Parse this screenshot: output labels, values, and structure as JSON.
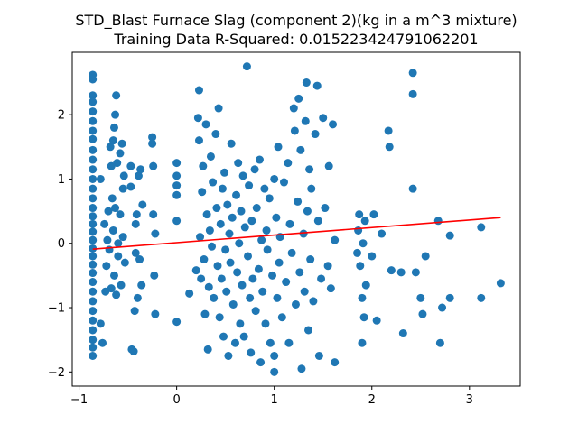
{
  "chart_data": {
    "type": "scatter",
    "title": "STD_Blast Furnace Slag (component 2)(kg in a m^3 mixture)",
    "subtitle": "Training Data R-Squared: 0.015223424791062201",
    "xlabel": "",
    "ylabel": "",
    "xlim": [
      -1.07,
      3.52
    ],
    "ylim": [
      -2.22,
      2.97
    ],
    "xticks": [
      -1,
      0,
      1,
      2,
      3
    ],
    "yticks": [
      -2,
      -1,
      0,
      1,
      2
    ],
    "grid": false,
    "colors": {
      "points": "#1f77b4",
      "fit_line": "#ff0000"
    },
    "fit_line": {
      "x": [
        -0.86,
        3.32
      ],
      "y": [
        -0.09,
        0.4
      ]
    },
    "series": [
      {
        "points": [
          [
            -0.86,
            2.62
          ],
          [
            -0.86,
            2.55
          ],
          [
            -0.86,
            2.3
          ],
          [
            -0.86,
            2.2
          ],
          [
            -0.86,
            2.05
          ],
          [
            -0.86,
            1.9
          ],
          [
            -0.86,
            1.75
          ],
          [
            -0.86,
            1.62
          ],
          [
            -0.86,
            1.45
          ],
          [
            -0.86,
            1.3
          ],
          [
            -0.86,
            1.15
          ],
          [
            -0.86,
            1.0
          ],
          [
            -0.86,
            0.85
          ],
          [
            -0.86,
            0.7
          ],
          [
            -0.86,
            0.55
          ],
          [
            -0.86,
            0.42
          ],
          [
            -0.86,
            0.3
          ],
          [
            -0.86,
            0.18
          ],
          [
            -0.86,
            0.05
          ],
          [
            -0.86,
            -0.08
          ],
          [
            -0.86,
            -0.2
          ],
          [
            -0.86,
            -0.33
          ],
          [
            -0.86,
            -0.46
          ],
          [
            -0.86,
            -0.6
          ],
          [
            -0.86,
            -0.75
          ],
          [
            -0.86,
            -0.9
          ],
          [
            -0.86,
            -1.05
          ],
          [
            -0.86,
            -1.2
          ],
          [
            -0.86,
            -1.35
          ],
          [
            -0.86,
            -1.5
          ],
          [
            -0.86,
            -1.62
          ],
          [
            -0.86,
            -1.75
          ],
          [
            -0.78,
            1.0
          ],
          [
            -0.78,
            -1.25
          ],
          [
            -0.76,
            -1.55
          ],
          [
            -0.74,
            0.3
          ],
          [
            -0.73,
            -0.75
          ],
          [
            -0.72,
            -0.35
          ],
          [
            -0.71,
            0.05
          ],
          [
            -0.7,
            0.5
          ],
          [
            -0.69,
            -0.1
          ],
          [
            -0.68,
            1.5
          ],
          [
            -0.67,
            1.2
          ],
          [
            -0.67,
            -0.7
          ],
          [
            -0.66,
            0.7
          ],
          [
            -0.65,
            1.6
          ],
          [
            -0.65,
            0.2
          ],
          [
            -0.64,
            1.8
          ],
          [
            -0.64,
            -0.5
          ],
          [
            -0.63,
            2.0
          ],
          [
            -0.63,
            0.55
          ],
          [
            -0.62,
            2.3
          ],
          [
            -0.62,
            -0.8
          ],
          [
            -0.61,
            1.25
          ],
          [
            -0.6,
            0.0
          ],
          [
            -0.6,
            -0.2
          ],
          [
            -0.58,
            1.4
          ],
          [
            -0.58,
            0.45
          ],
          [
            -0.57,
            -0.65
          ],
          [
            -0.56,
            1.55
          ],
          [
            -0.55,
            0.85
          ],
          [
            -0.55,
            0.1
          ],
          [
            -0.54,
            1.05
          ],
          [
            -0.53,
            -0.3
          ],
          [
            -0.47,
            1.2
          ],
          [
            -0.47,
            0.88
          ],
          [
            -0.46,
            -1.65
          ],
          [
            -0.44,
            -1.68
          ],
          [
            -0.43,
            -1.05
          ],
          [
            -0.42,
            -0.15
          ],
          [
            -0.42,
            0.3
          ],
          [
            -0.41,
            0.45
          ],
          [
            -0.4,
            -0.85
          ],
          [
            -0.39,
            1.05
          ],
          [
            -0.38,
            -0.25
          ],
          [
            -0.37,
            1.15
          ],
          [
            -0.36,
            -0.65
          ],
          [
            -0.35,
            0.6
          ],
          [
            -0.25,
            1.65
          ],
          [
            -0.25,
            1.55
          ],
          [
            -0.24,
            1.2
          ],
          [
            -0.24,
            0.45
          ],
          [
            -0.23,
            -0.5
          ],
          [
            -0.22,
            -1.1
          ],
          [
            -0.22,
            0.15
          ],
          [
            0.0,
            1.25
          ],
          [
            0.0,
            1.05
          ],
          [
            0.0,
            0.9
          ],
          [
            0.0,
            0.75
          ],
          [
            0.0,
            0.35
          ],
          [
            0.0,
            -1.22
          ],
          [
            0.13,
            -0.78
          ],
          [
            0.2,
            -0.42
          ],
          [
            0.22,
            1.95
          ],
          [
            0.23,
            2.38
          ],
          [
            0.23,
            1.6
          ],
          [
            0.24,
            0.1
          ],
          [
            0.25,
            -0.55
          ],
          [
            0.26,
            0.8
          ],
          [
            0.27,
            1.2
          ],
          [
            0.28,
            -0.25
          ],
          [
            0.29,
            -1.1
          ],
          [
            0.3,
            1.85
          ],
          [
            0.31,
            0.45
          ],
          [
            0.32,
            -1.65
          ],
          [
            0.33,
            -0.68
          ],
          [
            0.34,
            0.2
          ],
          [
            0.35,
            1.35
          ],
          [
            0.36,
            -0.05
          ],
          [
            0.37,
            0.95
          ],
          [
            0.38,
            -0.85
          ],
          [
            0.4,
            1.7
          ],
          [
            0.41,
            0.55
          ],
          [
            0.42,
            -0.35
          ],
          [
            0.43,
            2.1
          ],
          [
            0.44,
            -1.15
          ],
          [
            0.45,
            0.3
          ],
          [
            0.46,
            -0.55
          ],
          [
            0.47,
            0.85
          ],
          [
            0.48,
            -1.45
          ],
          [
            0.49,
            1.1
          ],
          [
            0.5,
            -0.1
          ],
          [
            0.51,
            -0.75
          ],
          [
            0.52,
            0.6
          ],
          [
            0.53,
            -1.75
          ],
          [
            0.54,
            0.15
          ],
          [
            0.55,
            -0.3
          ],
          [
            0.56,
            1.55
          ],
          [
            0.57,
            0.4
          ],
          [
            0.58,
            -0.95
          ],
          [
            0.6,
            -1.55
          ],
          [
            0.61,
            0.75
          ],
          [
            0.62,
            -0.45
          ],
          [
            0.63,
            1.25
          ],
          [
            0.64,
            0.0
          ],
          [
            0.65,
            -1.25
          ],
          [
            0.66,
            0.5
          ],
          [
            0.67,
            -0.65
          ],
          [
            0.68,
            1.05
          ],
          [
            0.69,
            -1.45
          ],
          [
            0.7,
            0.25
          ],
          [
            0.72,
            2.75
          ],
          [
            0.73,
            -0.2
          ],
          [
            0.74,
            0.9
          ],
          [
            0.75,
            -0.85
          ],
          [
            0.76,
            -1.7
          ],
          [
            0.77,
            0.35
          ],
          [
            0.78,
            -0.55
          ],
          [
            0.8,
            1.15
          ],
          [
            0.81,
            -1.05
          ],
          [
            0.82,
            0.55
          ],
          [
            0.84,
            -0.4
          ],
          [
            0.85,
            1.3
          ],
          [
            0.86,
            -1.85
          ],
          [
            0.87,
            0.05
          ],
          [
            0.88,
            -0.75
          ],
          [
            0.9,
            0.85
          ],
          [
            0.91,
            -1.25
          ],
          [
            0.92,
            0.2
          ],
          [
            0.93,
            -0.1
          ],
          [
            0.95,
            0.7
          ],
          [
            0.96,
            -1.55
          ],
          [
            0.98,
            -0.5
          ],
          [
            1.0,
            1.0
          ],
          [
            1.0,
            -1.75
          ],
          [
            1.0,
            -2.0
          ],
          [
            1.02,
            0.4
          ],
          [
            1.03,
            -0.85
          ],
          [
            1.04,
            1.5
          ],
          [
            1.05,
            -0.3
          ],
          [
            1.06,
            0.1
          ],
          [
            1.08,
            -1.15
          ],
          [
            1.1,
            0.95
          ],
          [
            1.12,
            -0.6
          ],
          [
            1.14,
            1.25
          ],
          [
            1.15,
            -1.55
          ],
          [
            1.16,
            0.3
          ],
          [
            1.18,
            -0.15
          ],
          [
            1.2,
            2.1
          ],
          [
            1.21,
            1.75
          ],
          [
            1.22,
            -0.95
          ],
          [
            1.24,
            0.65
          ],
          [
            1.25,
            2.25
          ],
          [
            1.26,
            -0.45
          ],
          [
            1.27,
            1.45
          ],
          [
            1.28,
            -1.95
          ],
          [
            1.3,
            0.15
          ],
          [
            1.31,
            -0.75
          ],
          [
            1.32,
            1.9
          ],
          [
            1.33,
            2.5
          ],
          [
            1.34,
            0.5
          ],
          [
            1.35,
            -1.35
          ],
          [
            1.36,
            1.15
          ],
          [
            1.37,
            -0.25
          ],
          [
            1.38,
            0.85
          ],
          [
            1.4,
            -0.9
          ],
          [
            1.42,
            1.7
          ],
          [
            1.44,
            2.45
          ],
          [
            1.45,
            0.35
          ],
          [
            1.46,
            -1.75
          ],
          [
            1.48,
            -0.55
          ],
          [
            1.5,
            1.95
          ],
          [
            1.52,
            0.55
          ],
          [
            1.55,
            -0.35
          ],
          [
            1.56,
            1.2
          ],
          [
            1.58,
            -0.7
          ],
          [
            1.6,
            1.85
          ],
          [
            1.62,
            -1.85
          ],
          [
            1.62,
            0.05
          ],
          [
            1.85,
            -0.15
          ],
          [
            1.86,
            0.2
          ],
          [
            1.87,
            0.45
          ],
          [
            1.88,
            -0.35
          ],
          [
            1.9,
            -1.55
          ],
          [
            1.9,
            -0.85
          ],
          [
            1.91,
            0.0
          ],
          [
            1.92,
            -1.15
          ],
          [
            1.93,
            0.35
          ],
          [
            1.94,
            -0.65
          ],
          [
            2.0,
            -0.2
          ],
          [
            2.02,
            0.45
          ],
          [
            2.05,
            -1.2
          ],
          [
            2.1,
            0.15
          ],
          [
            2.17,
            1.75
          ],
          [
            2.18,
            1.5
          ],
          [
            2.2,
            -0.42
          ],
          [
            2.3,
            -0.45
          ],
          [
            2.32,
            -1.4
          ],
          [
            2.42,
            2.65
          ],
          [
            2.42,
            2.32
          ],
          [
            2.42,
            0.85
          ],
          [
            2.45,
            -0.45
          ],
          [
            2.5,
            -0.85
          ],
          [
            2.52,
            -1.1
          ],
          [
            2.55,
            -0.2
          ],
          [
            2.68,
            0.35
          ],
          [
            2.7,
            -1.55
          ],
          [
            2.72,
            -1.0
          ],
          [
            2.8,
            0.12
          ],
          [
            2.8,
            -0.85
          ],
          [
            3.12,
            0.25
          ],
          [
            3.12,
            -0.85
          ],
          [
            3.32,
            -0.62
          ]
        ]
      }
    ]
  }
}
